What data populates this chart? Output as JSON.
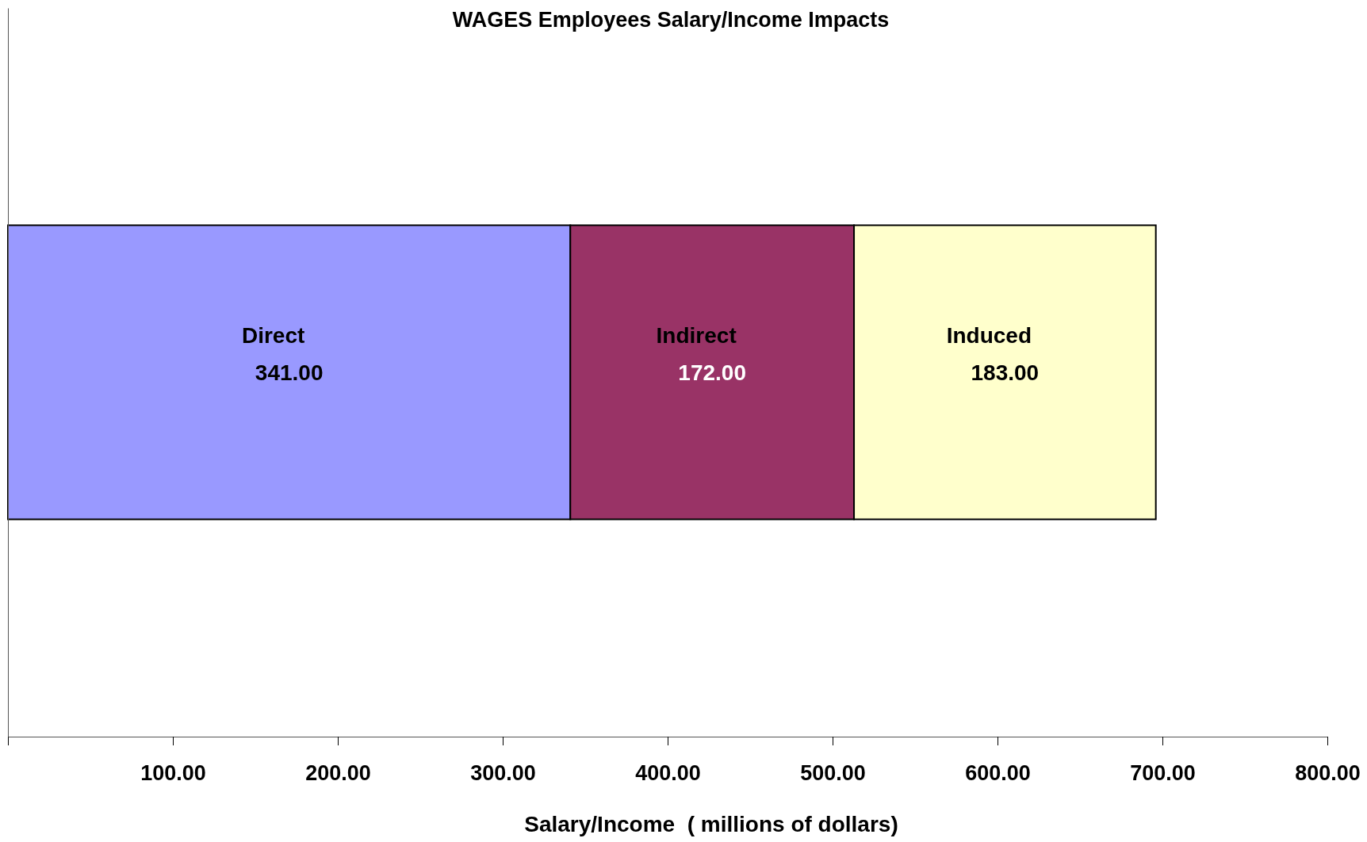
{
  "chart_data": {
    "type": "bar",
    "orientation": "horizontal",
    "stacked": true,
    "title": "WAGES Employees Salary/Income Impacts",
    "xlabel": "Salary/Income  ( millions of dollars)",
    "categories": [
      null
    ],
    "series": [
      {
        "name": "Direct",
        "color": "#9999ff",
        "values": [
          341
        ],
        "value_labels": [
          "341.00"
        ]
      },
      {
        "name": "Indirect",
        "color": "#993366",
        "values": [
          172
        ],
        "value_labels": [
          "172.00"
        ]
      },
      {
        "name": "Induced",
        "color": "#ffffcc",
        "values": [
          183
        ],
        "value_labels": [
          "183.00"
        ]
      }
    ],
    "xlim": [
      0,
      800
    ],
    "xticks": [
      {
        "value": 0,
        "label": null
      },
      {
        "value": 100,
        "label": "100.00"
      },
      {
        "value": 200,
        "label": "200.00"
      },
      {
        "value": 300,
        "label": "300.00"
      },
      {
        "value": 400,
        "label": "400.00"
      },
      {
        "value": 500,
        "label": "500.00"
      },
      {
        "value": 600,
        "label": "600.00"
      },
      {
        "value": 700,
        "label": "700.00"
      },
      {
        "value": 800,
        "label": "800.00"
      }
    ],
    "grid": false
  }
}
